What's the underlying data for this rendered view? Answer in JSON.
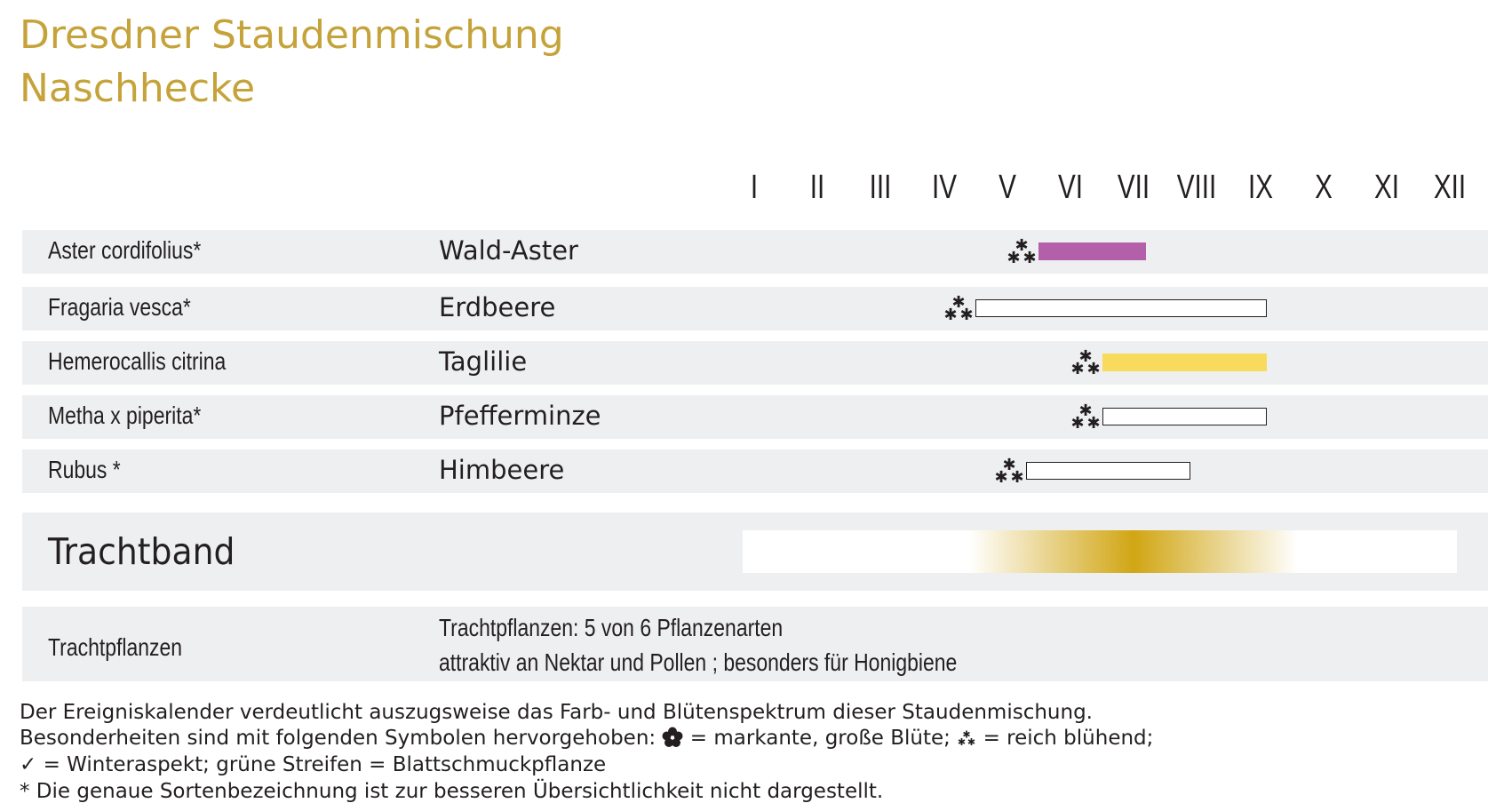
{
  "title_line1": "Dresdner Staudenmischung",
  "title_line2": "Naschhecke",
  "chart_data": {
    "type": "bar",
    "months": [
      "I",
      "II",
      "III",
      "IV",
      "V",
      "VI",
      "VII",
      "VIII",
      "IX",
      "X",
      "XI",
      "XII"
    ],
    "rows": [
      {
        "latin": "Aster cordifolius*",
        "common": "Wald-Aster",
        "symbol": "reich-bluehend-icon",
        "start": 6.0,
        "end": 7.7,
        "fill": "#b45faa",
        "outlined": false
      },
      {
        "latin": "Fragaria vesca*",
        "common": "Erdbeere",
        "symbol": "reich-bluehend-icon",
        "start": 5.0,
        "end": 9.6,
        "fill": "#ffffff",
        "outlined": true
      },
      {
        "latin": "Hemerocallis citrina",
        "common": "Taglilie",
        "symbol": "reich-bluehend-icon",
        "start": 7.0,
        "end": 9.6,
        "fill": "#f8da5c",
        "outlined": false
      },
      {
        "latin": "Metha x piperita*",
        "common": "Pfefferminze",
        "symbol": "reich-bluehend-icon",
        "start": 7.0,
        "end": 9.6,
        "fill": "#ffffff",
        "outlined": true
      },
      {
        "latin": "Rubus *",
        "common": "Himbeere",
        "symbol": "reich-bluehend-icon",
        "start": 5.8,
        "end": 8.4,
        "fill": "#ffffff",
        "outlined": true
      }
    ],
    "trachtband": {
      "label": "Trachtband",
      "peak_month": 7.0,
      "color": "#d1a614"
    }
  },
  "trachtpflanzen": {
    "label": "Trachtpflanzen",
    "line1": "Trachtpflanzen: 5 von 6 Pflanzenarten",
    "line2": "attraktiv an Nektar und Pollen ; besonders für Honigbiene"
  },
  "notes": {
    "line1": "Der Ereigniskalender verdeutlicht auszugsweise das Farb- und Blütenspektrum dieser Staudenmischung.",
    "line2a": "Besonderheiten sind mit folgenden Symbolen hervorgehoben:",
    "line2b": "= markante, große Blüte;",
    "line2c": "= reich blühend;",
    "line3a": "✓",
    "line3b": "= Winteraspekt; grüne Streifen = Blattschmuckpflanze",
    "line4": "* Die genaue Sortenbezeichnung ist zur besseren Übersichtlichkeit nicht dargestellt."
  }
}
